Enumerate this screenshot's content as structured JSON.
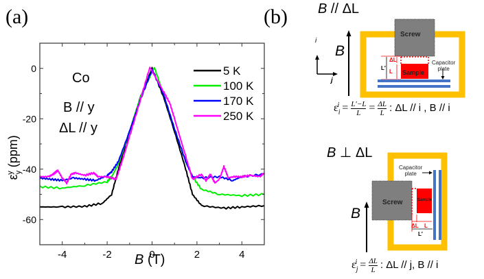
{
  "panels": {
    "a_label": "(a)",
    "b_label": "(b)"
  },
  "chart_data": {
    "type": "line",
    "title": "",
    "xlabel": "B (T)",
    "xlabel_italic": "B",
    "xlabel_unit": "(T)",
    "ylabel": "ε_y^y (ppm)",
    "xlim": [
      -5,
      5
    ],
    "ylim": [
      -70,
      10
    ],
    "xticks": [
      -4,
      -2,
      0,
      2,
      4
    ],
    "xtick_labels": [
      "-4",
      "-2",
      "0",
      "2",
      "4"
    ],
    "yticks": [
      0,
      -20,
      -40,
      -60
    ],
    "ytick_labels": [
      "0",
      "-20",
      "-40",
      "-60"
    ],
    "grid": false,
    "legend_position": "top-right",
    "annotations": [
      "Co",
      "B // y",
      "ΔL // y"
    ],
    "series": [
      {
        "name": "5 K",
        "color": "#000000",
        "x": [
          -5,
          -4,
          -3,
          -2.2,
          -1.8,
          -1.5,
          -1.0,
          -0.5,
          0,
          0.5,
          1.0,
          1.5,
          1.8,
          2.2,
          3.2,
          4,
          5
        ],
        "y": [
          -55,
          -55,
          -54.8,
          -53.5,
          -50,
          -40,
          -25,
          -11,
          0,
          -11,
          -25,
          -40,
          -50,
          -54.5,
          -55.5,
          -55,
          -54.5
        ]
      },
      {
        "name": "100 K",
        "color": "#00ee00",
        "x": [
          -5,
          -4,
          -3,
          -2,
          -1.8,
          -1.5,
          -1.0,
          -0.5,
          0.1,
          0.5,
          1.0,
          1.5,
          1.8,
          2.2,
          3,
          4,
          5
        ],
        "y": [
          -47,
          -47.5,
          -46.5,
          -45,
          -43,
          -38,
          -25,
          -11,
          0.5,
          -10,
          -24,
          -37,
          -43,
          -48,
          -50,
          -50.5,
          -50
        ]
      },
      {
        "name": "170 K",
        "color": "#0000ff",
        "x": [
          -5,
          -4.5,
          -4,
          -3.5,
          -3,
          -2.5,
          -2,
          -1.8,
          -1.5,
          -1.0,
          -0.5,
          0,
          0.5,
          1.0,
          1.5,
          1.8,
          2.2,
          3,
          3.6,
          4,
          5
        ],
        "y": [
          -43.5,
          -44,
          -44.5,
          -43.5,
          -44,
          -44.5,
          -42.5,
          -41,
          -37,
          -25,
          -12,
          -0.5,
          -10,
          -24,
          -37,
          -43,
          -43.5,
          -43,
          -44.5,
          -43,
          -42
        ]
      },
      {
        "name": "250 K",
        "color": "#ff00ff",
        "x": [
          -5,
          -4.6,
          -4.4,
          -4.2,
          -4,
          -3.8,
          -3.6,
          -3.4,
          -3,
          -2.6,
          -2.4,
          -2,
          -1.6,
          -1.3,
          -1.0,
          -0.5,
          -0.1,
          0.5,
          0.8,
          1.0,
          1.5,
          1.8,
          2.2,
          2.4,
          2.6,
          2.8,
          3,
          3.2,
          3.4,
          3.6,
          4,
          4.4,
          4.8,
          5
        ],
        "y": [
          -43,
          -43,
          -42,
          -40.5,
          -43.5,
          -45.5,
          -42,
          -41.5,
          -42.5,
          -41.5,
          -43,
          -43,
          -44,
          -36,
          -27,
          -12,
          0.5,
          -9,
          -14,
          -20,
          -35,
          -44,
          -42,
          -44.5,
          -42,
          -45.5,
          -44,
          -39,
          -43.5,
          -43,
          -43,
          -42.5,
          -43,
          -41.5
        ]
      }
    ]
  },
  "diagram": {
    "top": {
      "title": "B // ΔL",
      "title_italic": "B",
      "title_rest": " // ΔL",
      "field_label": "B",
      "axis_i": "i",
      "axis_j": "j",
      "screw_label": "Screw",
      "sample_label": "Sample",
      "capacitor_label_1": "Capacitor",
      "capacitor_label_2": "plate",
      "delta_l": "ΔL",
      "l_label": "L",
      "lprime_label": "L′",
      "formula_lhs": "ε",
      "formula_sup": "i",
      "formula_sub": "i",
      "formula_frac1_num": "L′−L",
      "formula_frac1_den": "L",
      "formula_frac2_num": "ΔL",
      "formula_frac2_den": "L",
      "formula_tail": ": ΔL // i , B // i"
    },
    "bottom": {
      "title": "B ⊥ ΔL",
      "title_italic": "B",
      "title_rest": " ⊥ ΔL",
      "field_label": "B",
      "screw_label": "Screw",
      "sample_label": "Sample",
      "capacitor_label_1": "Capacitor",
      "capacitor_label_2": "plate",
      "delta_l": "ΔL",
      "l_label": "L",
      "lprime_label": "L′",
      "formula_lhs": "ε",
      "formula_sup": "i",
      "formula_sub": "j",
      "formula_frac_num": "ΔL",
      "formula_frac_den": "L",
      "formula_tail": ": ΔL // j, B // i"
    },
    "colors": {
      "frame": "#ffc000",
      "screw": "#7f7f7f",
      "sample": "#ff0000",
      "plate": "#4472c4"
    }
  }
}
